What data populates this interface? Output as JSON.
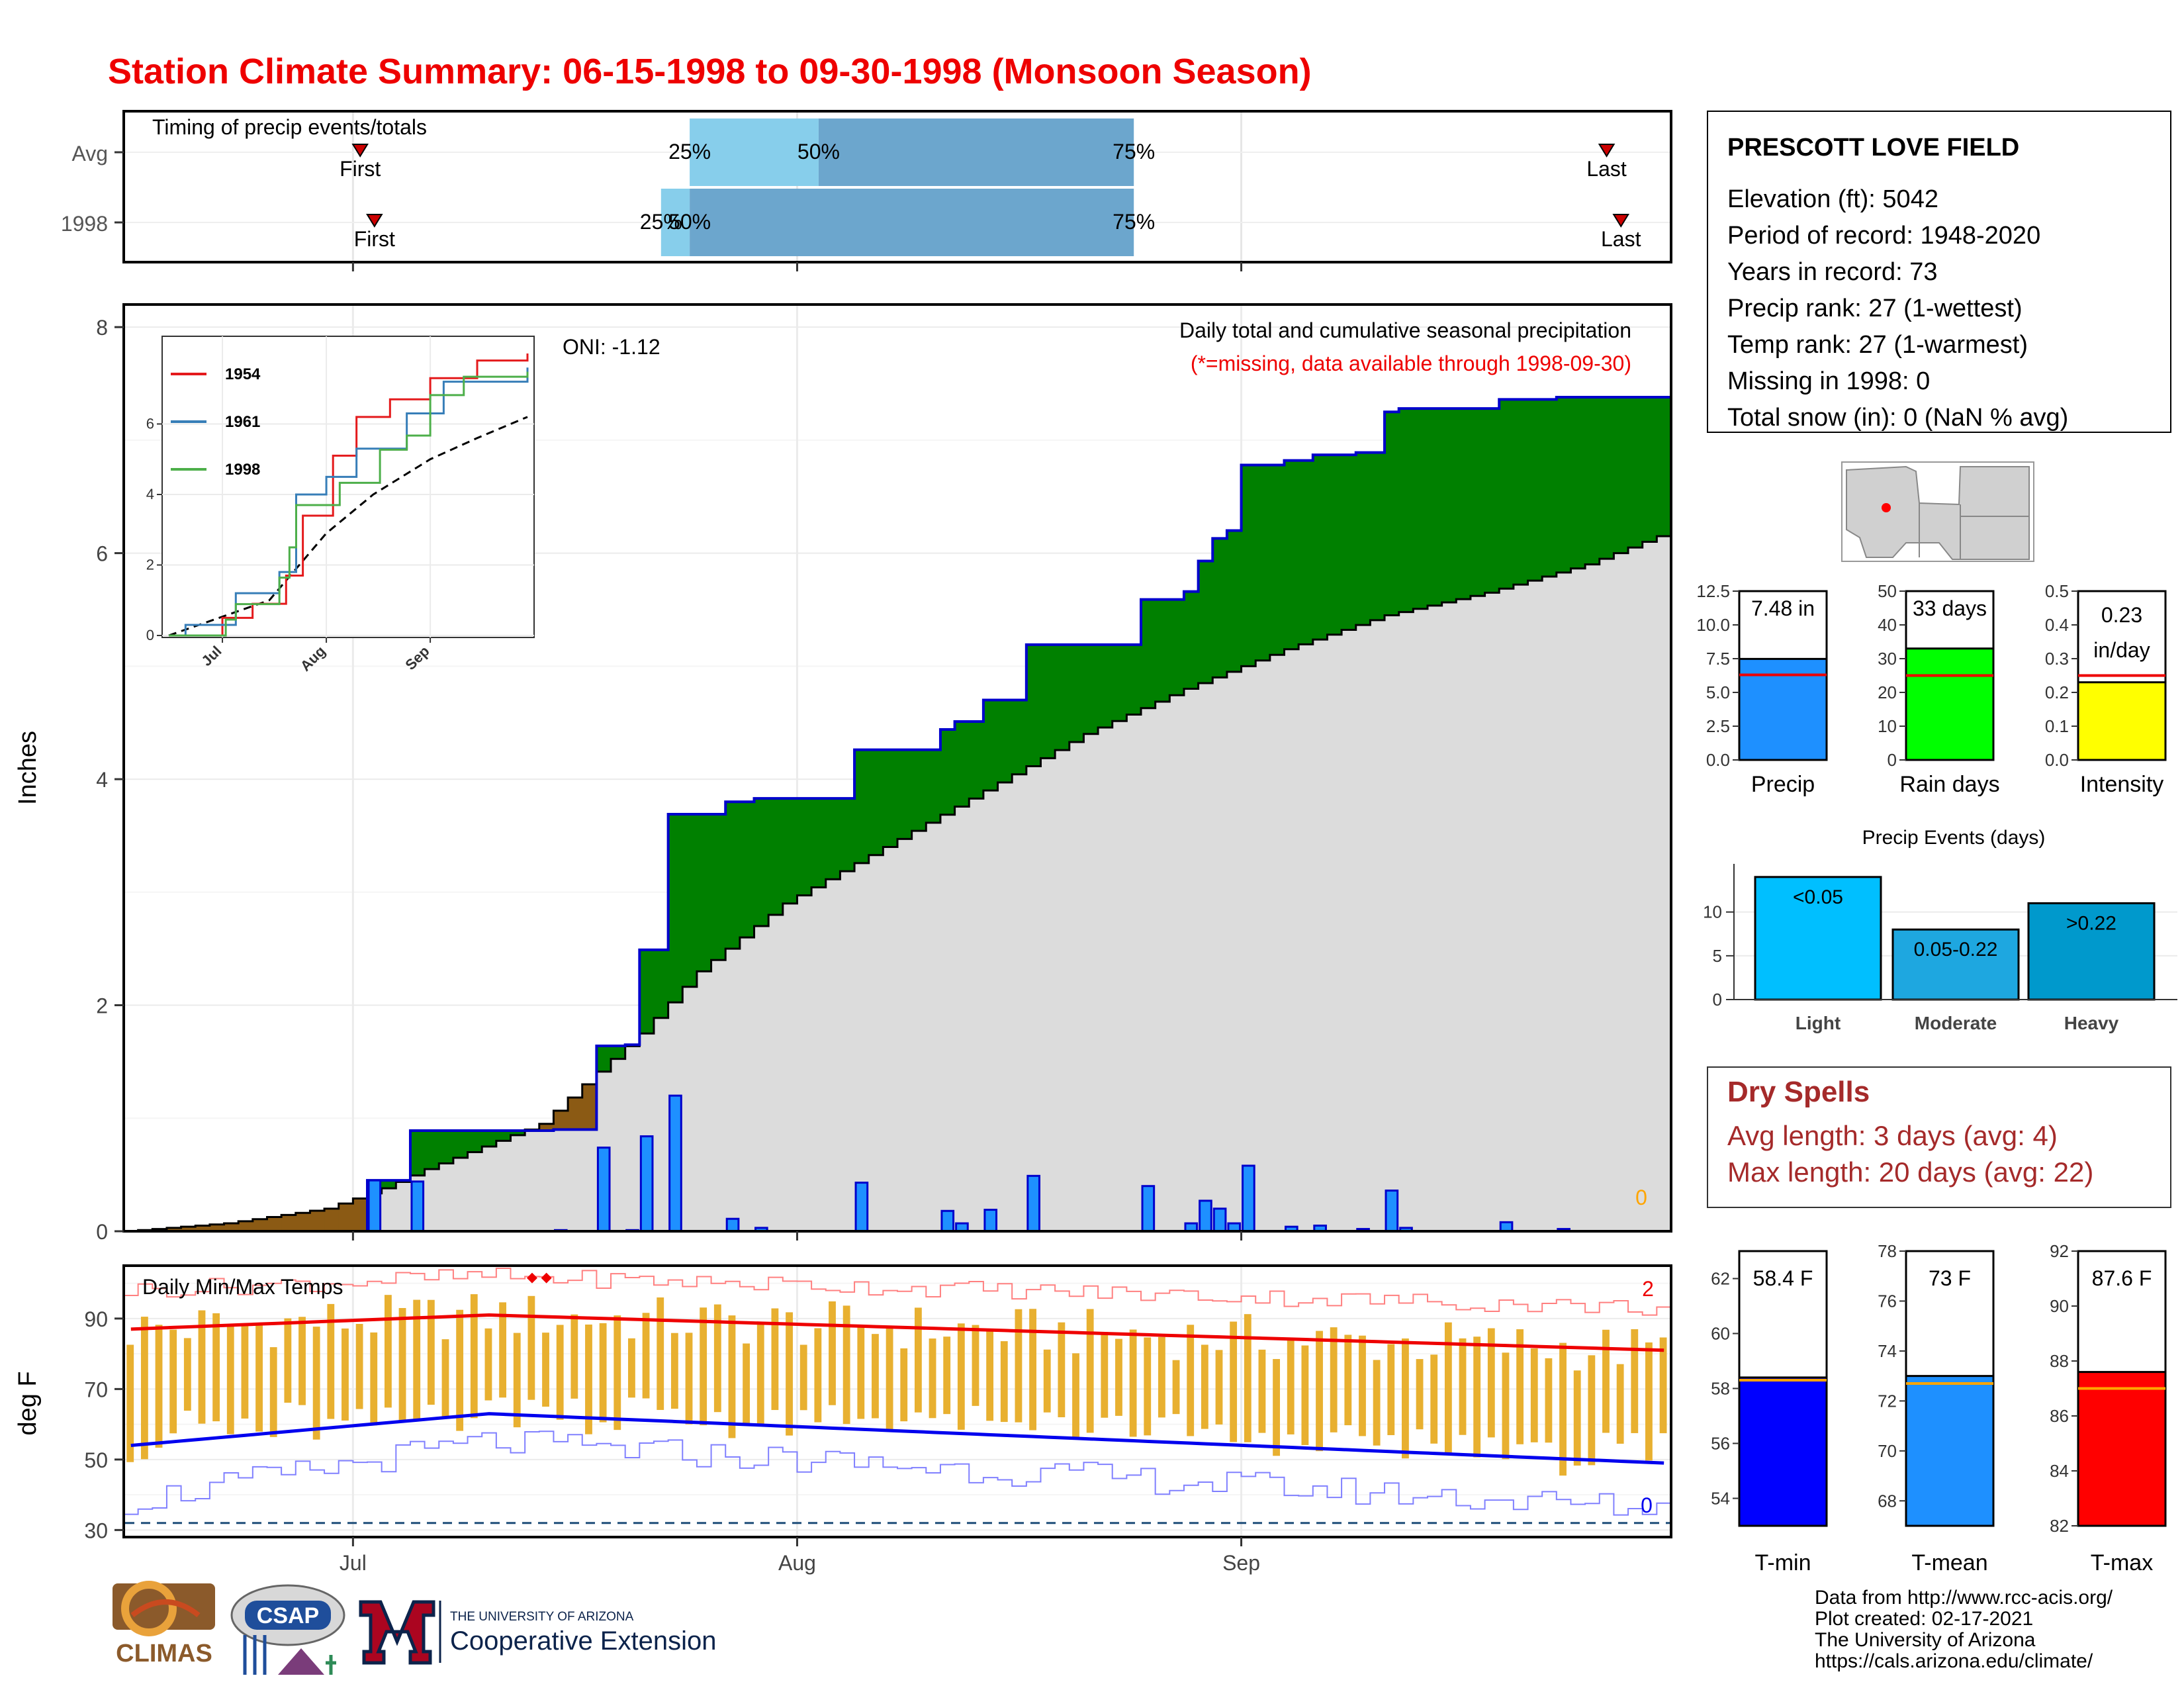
{
  "title": "Station Climate Summary: 06-15-1998 to 09-30-1998 (Monsoon Season)",
  "timing": {
    "label": "Timing of precip events/totals",
    "rows": [
      "Avg",
      "1998"
    ],
    "first_label": "First",
    "last_label": "Last",
    "q_labels": [
      "25%",
      "50%",
      "75%"
    ],
    "avg": {
      "first": "1998-07-01",
      "p25": "1998-07-24",
      "p50": "1998-08-02",
      "p75": "1998-08-24",
      "last": "1998-09-26"
    },
    "y1998": {
      "first": "1998-07-02",
      "p25": "1998-07-22",
      "p50": "1998-07-24",
      "p75": "1998-08-24",
      "last": "1998-09-27"
    },
    "colors": {
      "light": "#87CEEB",
      "dark": "#6CA6CD",
      "marker": "#CC0000"
    }
  },
  "info": {
    "station": "PRESCOTT LOVE FIELD",
    "lines": [
      "Elevation (ft): 5042",
      "Period of record: 1948-2020",
      "Years in record: 73",
      "Precip rank: 27 (1-wettest)",
      "Temp rank: 27 (1-warmest)",
      "Missing in 1998: 0",
      "Total snow (in): 0 (NaN % avg)"
    ]
  },
  "main_chart": {
    "ylabel": "Inches",
    "title": "Daily total and cumulative seasonal precipitation",
    "subtitle": "(*=missing, data available through 1998-09-30)",
    "oni": "ONI: -1.12",
    "missing_count": "0",
    "yticks": [
      "0",
      "2",
      "4",
      "6",
      "8"
    ],
    "xticks": [
      "Jul",
      "Aug",
      "Sep"
    ]
  },
  "inset": {
    "legend": [
      "1954",
      "1961",
      "1998"
    ],
    "yticks": [
      "0",
      "2",
      "4",
      "6"
    ],
    "xticks": [
      "Jul",
      "Aug",
      "Sep"
    ],
    "colors": {
      "1954": "#E41A1C",
      "1961": "#377EB8",
      "1998": "#4DAF4A"
    }
  },
  "temp_chart": {
    "title": "Daily Min/Max Temps",
    "ylabel": "deg F",
    "yticks": [
      "30",
      "50",
      "70",
      "90"
    ],
    "xticks": [
      "Jul",
      "Aug",
      "Sep"
    ],
    "record_high_count": "2",
    "record_low_count": "0"
  },
  "mini_bars": [
    {
      "label": "Precip",
      "value_text": "7.48 in",
      "value": 7.48,
      "avg": 6.3,
      "ymax": 12.5,
      "yticks": [
        "0.0",
        "2.5",
        "5.0",
        "7.5",
        "10.0",
        "12.5"
      ],
      "color": "#1E90FF"
    },
    {
      "label": "Rain days",
      "value_text": "33 days",
      "value": 33,
      "avg": 25,
      "ymax": 50,
      "yticks": [
        "0",
        "10",
        "20",
        "30",
        "40",
        "50"
      ],
      "color": "#00FF00"
    },
    {
      "label": "Intensity",
      "value_text": "0.23 in/day",
      "value_text_1": "0.23",
      "value_text_2": "in/day",
      "value": 0.23,
      "avg": 0.25,
      "ymax": 0.5,
      "yticks": [
        "0.0",
        "0.1",
        "0.2",
        "0.3",
        "0.4",
        "0.5"
      ],
      "color": "#FFFF00"
    }
  ],
  "precip_events": {
    "title": "Precip Events (days)",
    "categories": [
      "Light",
      "Moderate",
      "Heavy"
    ],
    "labels": [
      "<0.05",
      "0.05-0.22",
      ">0.22"
    ],
    "values": [
      14,
      8,
      11
    ],
    "yticks": [
      "0",
      "5",
      "10"
    ],
    "colors": [
      "#00BFFF",
      "#1EA7E0",
      "#0099CC"
    ]
  },
  "dry_spells": {
    "title": "Dry Spells",
    "avg_line": "Avg length: 3 days (avg: 4)",
    "max_line": "Max length: 20 days (avg: 22)"
  },
  "temp_bars": [
    {
      "label": "T-min",
      "value_text": "58.4 F",
      "value": 58.4,
      "avg": 58.3,
      "ymin": 53,
      "ymax": 63,
      "yticks": [
        "54",
        "56",
        "58",
        "60",
        "62"
      ],
      "color": "#0000FF"
    },
    {
      "label": "T-mean",
      "value_text": "73 F",
      "value": 73.0,
      "avg": 72.7,
      "ymin": 67,
      "ymax": 78,
      "yticks": [
        "68",
        "70",
        "72",
        "74",
        "76",
        "78"
      ],
      "color": "#1E90FF"
    },
    {
      "label": "T-max",
      "value_text": "87.6 F",
      "value": 87.6,
      "avg": 87.0,
      "ymin": 82,
      "ymax": 92,
      "yticks": [
        "82",
        "84",
        "86",
        "88",
        "90",
        "92"
      ],
      "color": "#FF0000"
    }
  ],
  "footer": {
    "climas": "CLIMAS",
    "csap": "CSAP",
    "ua_line1": "THE UNIVERSITY OF ARIZONA",
    "ua_line2": "Cooperative Extension",
    "credits": [
      "Data from http://www.rcc-acis.org/",
      "Plot created: 02-17-2021",
      "The University of Arizona",
      "https://cals.arizona.edu/climate/"
    ]
  },
  "chart_data": {
    "type": "bar",
    "title": "Daily total and cumulative seasonal precipitation",
    "ylabel": "Inches",
    "ylim": [
      0,
      8.2
    ],
    "daily_precip_1998": [
      {
        "date": "1998-07-02",
        "in": 0.45
      },
      {
        "date": "1998-07-05",
        "in": 0.44
      },
      {
        "date": "1998-07-15",
        "in": 0.01
      },
      {
        "date": "1998-07-18",
        "in": 0.74
      },
      {
        "date": "1998-07-20",
        "in": 0.01
      },
      {
        "date": "1998-07-21",
        "in": 0.84
      },
      {
        "date": "1998-07-23",
        "in": 1.2
      },
      {
        "date": "1998-07-27",
        "in": 0.11
      },
      {
        "date": "1998-07-29",
        "in": 0.03
      },
      {
        "date": "1998-08-05",
        "in": 0.43
      },
      {
        "date": "1998-08-11",
        "in": 0.18
      },
      {
        "date": "1998-08-12",
        "in": 0.07
      },
      {
        "date": "1998-08-14",
        "in": 0.19
      },
      {
        "date": "1998-08-17",
        "in": 0.49
      },
      {
        "date": "1998-08-25",
        "in": 0.4
      },
      {
        "date": "1998-08-28",
        "in": 0.07
      },
      {
        "date": "1998-08-29",
        "in": 0.27
      },
      {
        "date": "1998-08-30",
        "in": 0.2
      },
      {
        "date": "1998-08-31",
        "in": 0.07
      },
      {
        "date": "1998-09-01",
        "in": 0.58
      },
      {
        "date": "1998-09-04",
        "in": 0.04
      },
      {
        "date": "1998-09-06",
        "in": 0.05
      },
      {
        "date": "1998-09-09",
        "in": 0.02
      },
      {
        "date": "1998-09-11",
        "in": 0.36
      },
      {
        "date": "1998-09-12",
        "in": 0.03
      },
      {
        "date": "1998-09-19",
        "in": 0.08
      },
      {
        "date": "1998-09-23",
        "in": 0.02
      }
    ],
    "avg_cumulative": [
      {
        "date": "1998-06-15",
        "in": 0.0
      },
      {
        "date": "1998-06-22",
        "in": 0.07
      },
      {
        "date": "1998-06-29",
        "in": 0.2
      },
      {
        "date": "1998-07-03",
        "in": 0.38
      },
      {
        "date": "1998-07-06",
        "in": 0.55
      },
      {
        "date": "1998-07-09",
        "in": 0.7
      },
      {
        "date": "1998-07-14",
        "in": 0.95
      },
      {
        "date": "1998-07-17",
        "in": 1.3
      },
      {
        "date": "1998-07-21",
        "in": 1.75
      },
      {
        "date": "1998-07-25",
        "in": 2.3
      },
      {
        "date": "1998-07-31",
        "in": 2.9
      },
      {
        "date": "1998-08-07",
        "in": 3.4
      },
      {
        "date": "1998-08-14",
        "in": 3.9
      },
      {
        "date": "1998-08-21",
        "in": 4.4
      },
      {
        "date": "1998-08-28",
        "in": 4.8
      },
      {
        "date": "1998-09-04",
        "in": 5.15
      },
      {
        "date": "1998-09-11",
        "in": 5.45
      },
      {
        "date": "1998-09-18",
        "in": 5.65
      },
      {
        "date": "1998-09-25",
        "in": 5.9
      },
      {
        "date": "1998-09-30",
        "in": 6.15
      }
    ],
    "inset_cumulative": {
      "1954": [
        {
          "date": "1998-06-15",
          "in": 0.0
        },
        {
          "date": "1998-07-01",
          "in": 0.5
        },
        {
          "date": "1998-07-10",
          "in": 0.9
        },
        {
          "date": "1998-07-20",
          "in": 1.7
        },
        {
          "date": "1998-07-25",
          "in": 3.4
        },
        {
          "date": "1998-08-03",
          "in": 5.1
        },
        {
          "date": "1998-08-10",
          "in": 6.2
        },
        {
          "date": "1998-08-20",
          "in": 6.7
        },
        {
          "date": "1998-09-01",
          "in": 7.3
        },
        {
          "date": "1998-09-15",
          "in": 7.8
        },
        {
          "date": "1998-09-30",
          "in": 8.0
        }
      ],
      "1961": [
        {
          "date": "1998-06-15",
          "in": 0.0
        },
        {
          "date": "1998-06-20",
          "in": 0.3
        },
        {
          "date": "1998-07-05",
          "in": 1.2
        },
        {
          "date": "1998-07-18",
          "in": 1.8
        },
        {
          "date": "1998-07-23",
          "in": 4.0
        },
        {
          "date": "1998-08-01",
          "in": 4.5
        },
        {
          "date": "1998-08-10",
          "in": 5.3
        },
        {
          "date": "1998-08-25",
          "in": 6.3
        },
        {
          "date": "1998-09-05",
          "in": 7.2
        },
        {
          "date": "1998-09-30",
          "in": 7.6
        }
      ],
      "1998": [
        {
          "date": "1998-06-15",
          "in": 0.0
        },
        {
          "date": "1998-07-02",
          "in": 0.45
        },
        {
          "date": "1998-07-05",
          "in": 0.89
        },
        {
          "date": "1998-07-18",
          "in": 1.64
        },
        {
          "date": "1998-07-21",
          "in": 2.5
        },
        {
          "date": "1998-07-23",
          "in": 3.7
        },
        {
          "date": "1998-08-05",
          "in": 4.33
        },
        {
          "date": "1998-08-17",
          "in": 5.27
        },
        {
          "date": "1998-08-25",
          "in": 5.67
        },
        {
          "date": "1998-09-01",
          "in": 6.82
        },
        {
          "date": "1998-09-11",
          "in": 7.34
        },
        {
          "date": "1998-09-30",
          "in": 7.48
        }
      ],
      "avg": [
        {
          "date": "1998-06-15",
          "in": 0.0
        },
        {
          "date": "1998-07-15",
          "in": 1.0
        },
        {
          "date": "1998-08-01",
          "in": 2.9
        },
        {
          "date": "1998-08-15",
          "in": 4.0
        },
        {
          "date": "1998-09-01",
          "in": 5.0
        },
        {
          "date": "1998-09-15",
          "in": 5.6
        },
        {
          "date": "1998-09-30",
          "in": 6.2
        }
      ]
    },
    "temps": {
      "ylim": [
        28,
        105
      ],
      "record_low_threshold": 32,
      "avg_max_start": 87,
      "avg_max_peak": 91,
      "avg_max_end": 81,
      "avg_min_start": 54,
      "avg_min_peak": 63,
      "avg_min_end": 49,
      "rec_max_start": 98,
      "rec_max_peak": 102,
      "rec_max_end": 93,
      "rec_min_start": 38,
      "rec_min_peak": 55,
      "rec_min_end": 36
    }
  }
}
